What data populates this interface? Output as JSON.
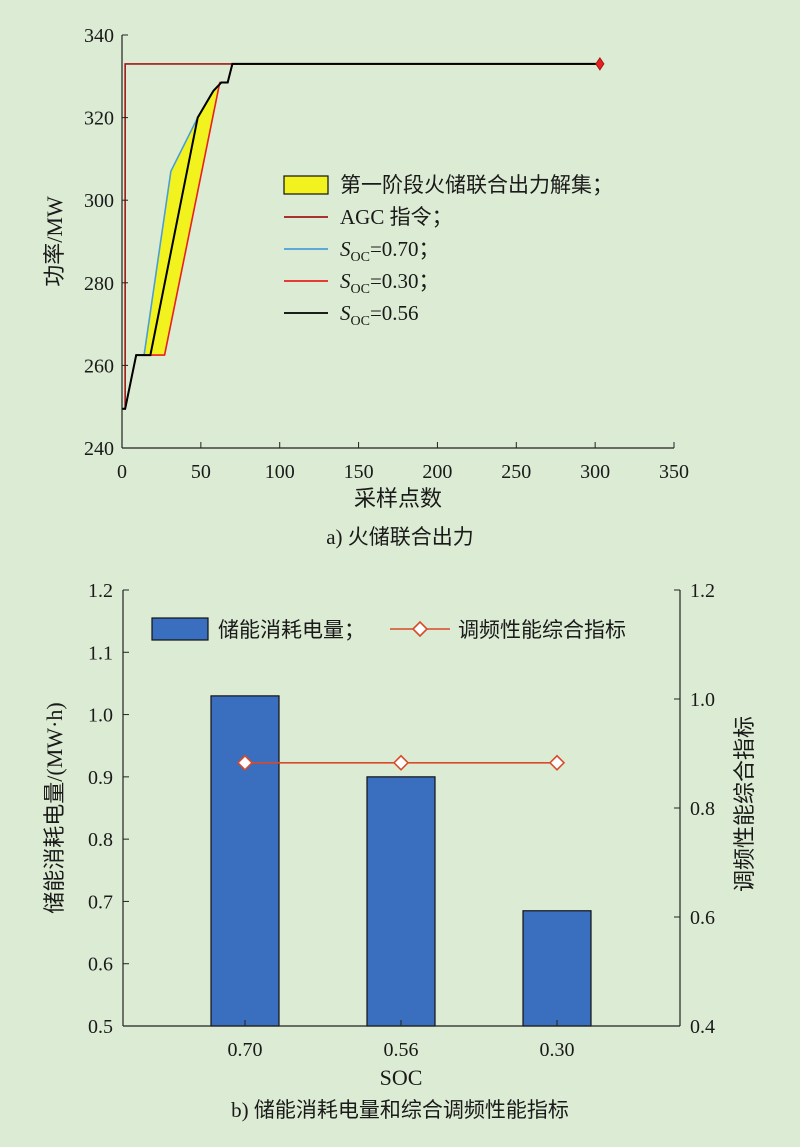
{
  "chart_data": [
    {
      "type": "line",
      "caption": "a) 火储联合出力",
      "xlabel": "采样点数",
      "ylabel": "功率/MW",
      "xlim": [
        0,
        350
      ],
      "ylim": [
        240,
        340
      ],
      "xticks": [
        0,
        50,
        100,
        150,
        200,
        250,
        300,
        350
      ],
      "yticks": [
        240,
        260,
        280,
        300,
        320,
        340
      ],
      "legend_position": "center-right",
      "legend": [
        {
          "label": "第一阶段火储联合出力解集；",
          "kind": "area",
          "color": "#f2f21e"
        },
        {
          "label": "AGC 指令；",
          "kind": "line",
          "color": "#a01818"
        },
        {
          "label_main": "S",
          "label_sub": "OC",
          "label_rest": "=0.70；",
          "kind": "line",
          "color": "#4a9fd8"
        },
        {
          "label_main": "S",
          "label_sub": "OC",
          "label_rest": "=0.30；",
          "kind": "line",
          "color": "#e82020"
        },
        {
          "label_main": "S",
          "label_sub": "OC",
          "label_rest": "=0.56",
          "kind": "line",
          "color": "#000000"
        }
      ],
      "series": [
        {
          "name": "AGC 指令",
          "color": "#a01818",
          "x": [
            0,
            2,
            2,
            303
          ],
          "y": [
            249.5,
            249.5,
            333,
            333
          ]
        },
        {
          "name": "SOC=0.70",
          "color": "#4a9fd8",
          "x": [
            0,
            2,
            9,
            14,
            31,
            48,
            57,
            63,
            67,
            70,
            303
          ],
          "y": [
            249.5,
            249.5,
            262.5,
            262.5,
            307,
            320,
            326,
            328.5,
            328.5,
            333,
            333
          ]
        },
        {
          "name": "SOC=0.30",
          "color": "#e82020",
          "x": [
            0,
            2,
            9,
            27,
            62,
            63,
            67,
            70,
            303
          ],
          "y": [
            249.5,
            249.5,
            262.5,
            262.5,
            328.5,
            328.5,
            328.5,
            333,
            333
          ]
        },
        {
          "name": "SOC=0.56",
          "color": "#000000",
          "x": [
            0,
            2,
            9,
            18,
            48,
            58,
            63,
            67,
            70,
            303
          ],
          "y": [
            249.5,
            249.5,
            262.5,
            262.5,
            320,
            326.5,
            328.5,
            328.5,
            333,
            333
          ]
        }
      ],
      "band_upper": {
        "x": [
          9,
          14,
          31,
          48,
          57,
          63
        ],
        "y": [
          262.5,
          262.5,
          307,
          320,
          326,
          328.5
        ]
      },
      "band_lower": {
        "x": [
          9,
          27,
          62,
          63
        ],
        "y": [
          262.5,
          262.5,
          328.5,
          328.5
        ]
      },
      "band_color": "#f2f21e"
    },
    {
      "type": "bar",
      "caption": "b) 储能消耗电量和综合调频性能指标",
      "xlabel": "SOC",
      "ylabel": "储能消耗电量/(MW·h)",
      "y2label": "调频性能综合指标",
      "categories": [
        "0.70",
        "0.56",
        "0.30"
      ],
      "ylim": [
        0.5,
        1.2
      ],
      "y2lim": [
        0.4,
        1.2
      ],
      "yticks": [
        "0.5",
        "0.6",
        "0.7",
        "0.8",
        "0.9",
        "1.0",
        "1.1",
        "1.2"
      ],
      "y2ticks": [
        "0.4",
        "0.6",
        "0.8",
        "1.0",
        "1.2"
      ],
      "legend_position": "top",
      "series": [
        {
          "name": "储能消耗电量；",
          "axis": "left",
          "kind": "bar",
          "color": "#3a6fbf",
          "values": [
            1.03,
            0.9,
            0.685
          ]
        },
        {
          "name": "调频性能综合指标",
          "axis": "right",
          "kind": "line-diamond",
          "color": "#d84a2a",
          "values": [
            0.883,
            0.883,
            0.883
          ]
        }
      ]
    }
  ]
}
